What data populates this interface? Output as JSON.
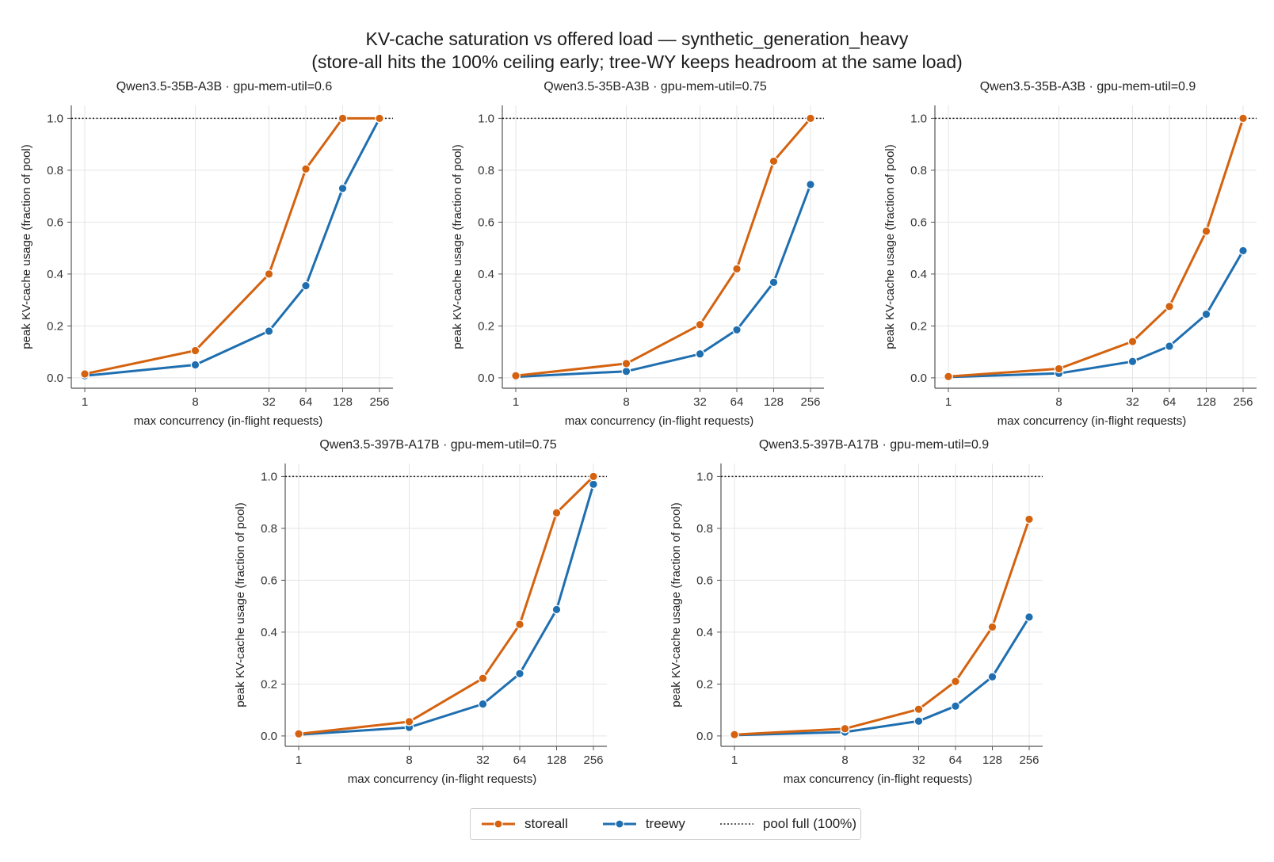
{
  "figure": {
    "title_line1": "KV-cache saturation vs offered load — synthetic_generation_heavy",
    "title_line2": "(store-all hits the 100% ceiling early; tree-WY keeps headroom at the same load)"
  },
  "legend": {
    "storeall": "storeall",
    "treewy": "treewy",
    "pool_full": "pool full (100%)"
  },
  "colors": {
    "storeall": "#d4620f",
    "treewy": "#1f6fb0",
    "grid": "#e5e5e5",
    "axis": "#555555"
  },
  "chart_data": [
    {
      "type": "line",
      "title": "Qwen3.5-35B-A3B  ·  gpu-mem-util=0.6",
      "xlabel": "max concurrency (in-flight requests)",
      "ylabel": "peak KV-cache usage (fraction of pool)",
      "x": [
        1,
        8,
        32,
        64,
        128,
        256
      ],
      "x_tick_labels": [
        "1",
        "8",
        "32",
        "64",
        "128",
        "256"
      ],
      "ylim": [
        -0.04,
        1.05
      ],
      "y_ticks": [
        "0.0",
        "0.2",
        "0.4",
        "0.6",
        "0.8",
        "1.0"
      ],
      "x_scale": "log",
      "grid": true,
      "series": [
        {
          "name": "storeall",
          "values": [
            0.015,
            0.105,
            0.4,
            0.805,
            1.0,
            1.0
          ]
        },
        {
          "name": "treewy",
          "values": [
            0.008,
            0.05,
            0.18,
            0.355,
            0.73,
            1.0
          ]
        }
      ],
      "reference_line": {
        "name": "pool full (100%)",
        "y": 1.0
      }
    },
    {
      "type": "line",
      "title": "Qwen3.5-35B-A3B  ·  gpu-mem-util=0.75",
      "xlabel": "max concurrency (in-flight requests)",
      "ylabel": "peak KV-cache usage (fraction of pool)",
      "x": [
        1,
        8,
        32,
        64,
        128,
        256
      ],
      "x_tick_labels": [
        "1",
        "8",
        "32",
        "64",
        "128",
        "256"
      ],
      "ylim": [
        -0.04,
        1.05
      ],
      "y_ticks": [
        "0.0",
        "0.2",
        "0.4",
        "0.6",
        "0.8",
        "1.0"
      ],
      "x_scale": "log",
      "grid": true,
      "series": [
        {
          "name": "storeall",
          "values": [
            0.008,
            0.055,
            0.205,
            0.42,
            0.835,
            1.0
          ]
        },
        {
          "name": "treewy",
          "values": [
            0.004,
            0.025,
            0.092,
            0.185,
            0.368,
            0.745
          ]
        }
      ],
      "reference_line": {
        "name": "pool full (100%)",
        "y": 1.0
      }
    },
    {
      "type": "line",
      "title": "Qwen3.5-35B-A3B  ·  gpu-mem-util=0.9",
      "xlabel": "max concurrency (in-flight requests)",
      "ylabel": "peak KV-cache usage (fraction of pool)",
      "x": [
        1,
        8,
        32,
        64,
        128,
        256
      ],
      "x_tick_labels": [
        "1",
        "8",
        "32",
        "64",
        "128",
        "256"
      ],
      "ylim": [
        -0.04,
        1.05
      ],
      "y_ticks": [
        "0.0",
        "0.2",
        "0.4",
        "0.6",
        "0.8",
        "1.0"
      ],
      "x_scale": "log",
      "grid": true,
      "series": [
        {
          "name": "storeall",
          "values": [
            0.005,
            0.035,
            0.14,
            0.275,
            0.565,
            1.0
          ]
        },
        {
          "name": "treewy",
          "values": [
            0.003,
            0.017,
            0.063,
            0.122,
            0.245,
            0.49
          ]
        }
      ],
      "reference_line": {
        "name": "pool full (100%)",
        "y": 1.0
      }
    },
    {
      "type": "line",
      "title": "Qwen3.5-397B-A17B  ·  gpu-mem-util=0.75",
      "xlabel": "max concurrency (in-flight requests)",
      "ylabel": "peak KV-cache usage (fraction of pool)",
      "x": [
        1,
        8,
        32,
        64,
        128,
        256
      ],
      "x_tick_labels": [
        "1",
        "8",
        "32",
        "64",
        "128",
        "256"
      ],
      "ylim": [
        -0.04,
        1.05
      ],
      "y_ticks": [
        "0.0",
        "0.2",
        "0.4",
        "0.6",
        "0.8",
        "1.0"
      ],
      "x_scale": "log",
      "grid": true,
      "series": [
        {
          "name": "storeall",
          "values": [
            0.008,
            0.055,
            0.222,
            0.43,
            0.86,
            1.0
          ]
        },
        {
          "name": "treewy",
          "values": [
            0.005,
            0.033,
            0.123,
            0.24,
            0.487,
            0.97
          ]
        }
      ],
      "reference_line": {
        "name": "pool full (100%)",
        "y": 1.0
      }
    },
    {
      "type": "line",
      "title": "Qwen3.5-397B-A17B  ·  gpu-mem-util=0.9",
      "xlabel": "max concurrency (in-flight requests)",
      "ylabel": "peak KV-cache usage (fraction of pool)",
      "x": [
        1,
        8,
        32,
        64,
        128,
        256
      ],
      "x_tick_labels": [
        "1",
        "8",
        "32",
        "64",
        "128",
        "256"
      ],
      "ylim": [
        -0.04,
        1.05
      ],
      "y_ticks": [
        "0.0",
        "0.2",
        "0.4",
        "0.6",
        "0.8",
        "1.0"
      ],
      "x_scale": "log",
      "grid": true,
      "series": [
        {
          "name": "storeall",
          "values": [
            0.005,
            0.028,
            0.103,
            0.21,
            0.42,
            0.835
          ]
        },
        {
          "name": "treewy",
          "values": [
            0.003,
            0.015,
            0.057,
            0.115,
            0.228,
            0.458
          ]
        }
      ],
      "reference_line": {
        "name": "pool full (100%)",
        "y": 1.0
      }
    }
  ]
}
